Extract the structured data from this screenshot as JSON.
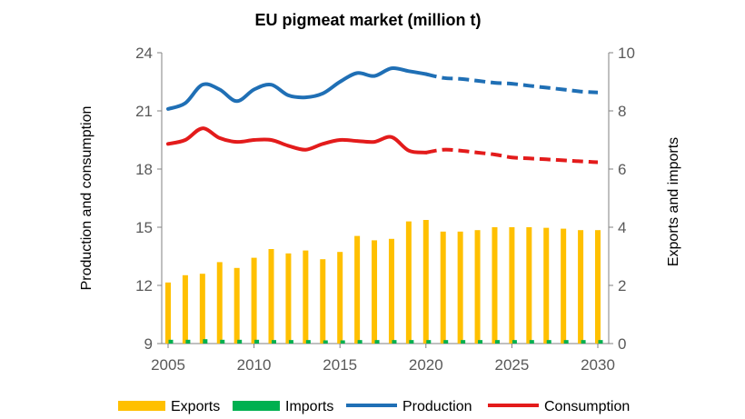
{
  "chart_data": {
    "type": "bar",
    "title": "EU pigmeat market (million t)",
    "ylabel_left": "Production and consumption",
    "ylabel_right": "Exports and imports",
    "ylim_left": [
      9,
      24
    ],
    "yticks_left": [
      "9",
      "12",
      "15",
      "18",
      "21",
      "24"
    ],
    "ylim_right": [
      0,
      10
    ],
    "yticks_right": [
      "0",
      "2",
      "4",
      "6",
      "8",
      "10"
    ],
    "xlim": [
      2005,
      2030
    ],
    "xticks": [
      "2005",
      "2010",
      "2015",
      "2020",
      "2025",
      "2030"
    ],
    "x": [
      2005,
      2006,
      2007,
      2008,
      2009,
      2010,
      2011,
      2012,
      2013,
      2014,
      2015,
      2016,
      2017,
      2018,
      2019,
      2020,
      2021,
      2022,
      2023,
      2024,
      2025,
      2026,
      2027,
      2028,
      2029,
      2030
    ],
    "series": [
      {
        "name": "Exports",
        "axis": "right",
        "kind": "bar",
        "color": "#FFC000",
        "values": [
          2.1,
          2.35,
          2.4,
          2.8,
          2.6,
          2.95,
          3.25,
          3.1,
          3.2,
          2.9,
          3.15,
          3.7,
          3.55,
          3.6,
          4.2,
          4.25,
          3.85,
          3.85,
          3.9,
          4.0,
          4.0,
          4.0,
          3.98,
          3.95,
          3.9,
          3.9
        ]
      },
      {
        "name": "Imports",
        "axis": "right",
        "kind": "bar",
        "color": "#00B050",
        "values": [
          0.13,
          0.13,
          0.15,
          0.13,
          0.13,
          0.13,
          0.12,
          0.12,
          0.12,
          0.11,
          0.11,
          0.12,
          0.12,
          0.12,
          0.12,
          0.12,
          0.12,
          0.12,
          0.12,
          0.12,
          0.12,
          0.12,
          0.12,
          0.12,
          0.12,
          0.12
        ]
      },
      {
        "name": "Production",
        "axis": "left",
        "kind": "line",
        "color": "#1F6FB5",
        "values": [
          21.1,
          21.4,
          22.35,
          22.1,
          21.5,
          22.1,
          22.35,
          21.8,
          21.7,
          21.9,
          22.5,
          22.95,
          22.8,
          23.2,
          23.05,
          22.9,
          22.7,
          22.65,
          22.55,
          22.45,
          22.4,
          22.3,
          22.2,
          22.1,
          22.0,
          21.95
        ],
        "projected_from": 2020
      },
      {
        "name": "Consumption",
        "axis": "left",
        "kind": "line",
        "color": "#E31B1B",
        "values": [
          19.3,
          19.5,
          20.1,
          19.6,
          19.4,
          19.5,
          19.5,
          19.2,
          19.0,
          19.3,
          19.5,
          19.45,
          19.4,
          19.65,
          18.95,
          18.85,
          19.0,
          18.95,
          18.85,
          18.75,
          18.6,
          18.55,
          18.5,
          18.45,
          18.4,
          18.35
        ],
        "projected_from": 2020
      }
    ],
    "legend": {
      "position": "bottom",
      "entries": [
        "Exports",
        "Imports",
        "Production",
        "Consumption"
      ]
    }
  }
}
